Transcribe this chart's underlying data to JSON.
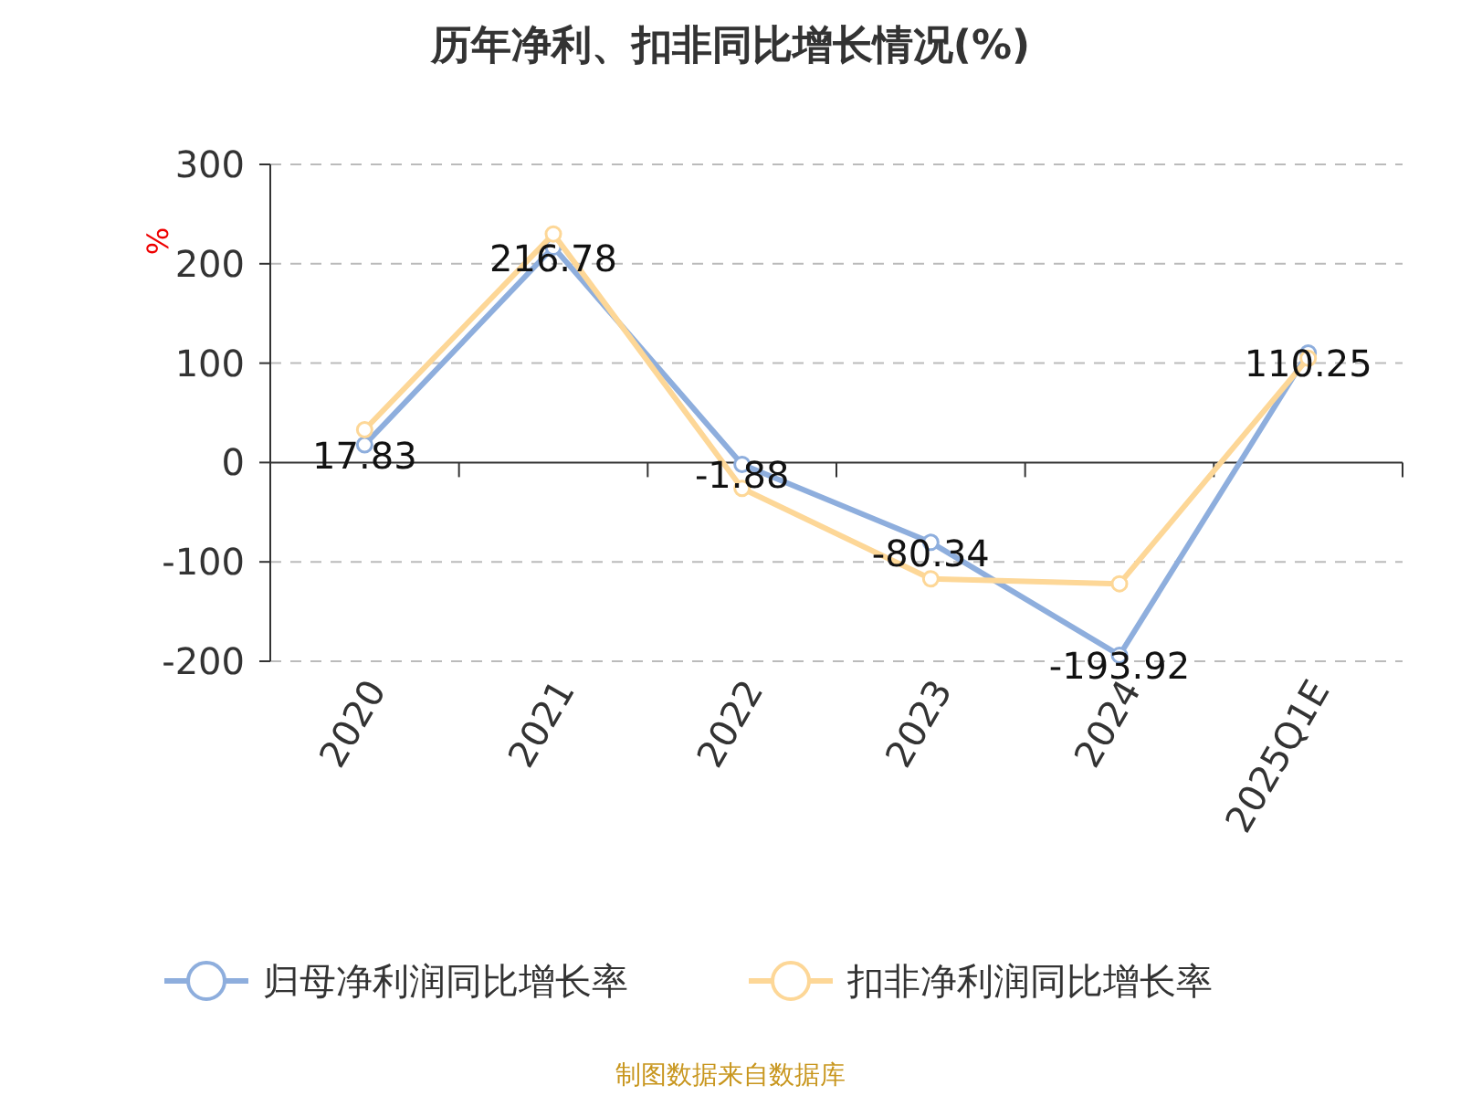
{
  "chart_data": {
    "type": "line",
    "title": "历年净利、扣非同比增长情况(%)",
    "ylabel": "%",
    "categories": [
      "2020",
      "2021",
      "2022",
      "2023",
      "2024",
      "2025Q1E"
    ],
    "series": [
      {
        "name": "归母净利润同比增长率",
        "color": "#8eaedd",
        "values": [
          17.83,
          216.78,
          -1.88,
          -80.34,
          -193.92,
          110.25
        ],
        "value_labels": [
          "17.83",
          "216.78",
          "-1.88",
          "-80.34",
          "-193.92",
          "110.25"
        ]
      },
      {
        "name": "扣非净利润同比增长率",
        "color": "#fdd797",
        "values": [
          33,
          230,
          -26,
          -117,
          -122,
          105
        ]
      }
    ],
    "ylim": [
      -200,
      300
    ],
    "yticks": [
      -200,
      -100,
      0,
      100,
      200,
      300
    ],
    "grid": "y",
    "legend": "bottom",
    "marker": "circle",
    "line_style": "solid",
    "annotations": [
      "制图数据来自数据库"
    ]
  }
}
